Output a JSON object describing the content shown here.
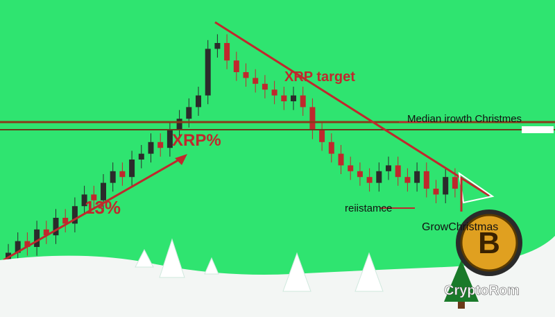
{
  "chart_data": {
    "type": "candlestick",
    "ylim": [
      0,
      100
    ],
    "open": [
      15,
      18,
      22,
      20,
      26,
      24,
      30,
      28,
      34,
      38,
      36,
      42,
      46,
      44,
      50,
      52,
      56,
      54,
      60,
      64,
      68,
      72,
      88,
      90,
      84,
      80,
      78,
      76,
      74,
      72,
      70,
      72,
      68,
      60,
      56,
      52,
      48,
      46,
      44,
      42,
      46,
      48,
      44,
      42,
      46,
      40,
      38,
      44
    ],
    "high": [
      21,
      25,
      25,
      29,
      29,
      33,
      33,
      37,
      41,
      41,
      45,
      49,
      49,
      53,
      55,
      59,
      59,
      63,
      67,
      71,
      75,
      91,
      93,
      93,
      87,
      83,
      81,
      79,
      77,
      75,
      75,
      75,
      71,
      63,
      59,
      55,
      51,
      49,
      47,
      49,
      51,
      51,
      47,
      49,
      49,
      43,
      47,
      47
    ],
    "low": [
      12,
      15,
      17,
      17,
      21,
      21,
      25,
      25,
      31,
      33,
      33,
      39,
      41,
      41,
      47,
      49,
      51,
      51,
      57,
      61,
      65,
      69,
      85,
      81,
      77,
      75,
      73,
      71,
      69,
      67,
      67,
      65,
      57,
      53,
      49,
      45,
      43,
      41,
      39,
      39,
      43,
      41,
      39,
      39,
      37,
      35,
      35,
      37
    ],
    "close": [
      18,
      22,
      20,
      26,
      24,
      30,
      28,
      34,
      38,
      36,
      42,
      46,
      44,
      50,
      52,
      56,
      54,
      60,
      64,
      68,
      72,
      88,
      90,
      84,
      80,
      78,
      76,
      74,
      72,
      70,
      72,
      68,
      60,
      56,
      52,
      48,
      46,
      44,
      42,
      46,
      48,
      44,
      42,
      46,
      40,
      38,
      44,
      40
    ],
    "up_color": "#2b2b2b",
    "down_color": "#c0282d",
    "annotations": [
      "XRP target",
      "XRP%",
      "13%",
      "Median irowth Christmes",
      "reiistamce",
      "GrowChristmas"
    ],
    "watermark": "CryptoRom"
  }
}
